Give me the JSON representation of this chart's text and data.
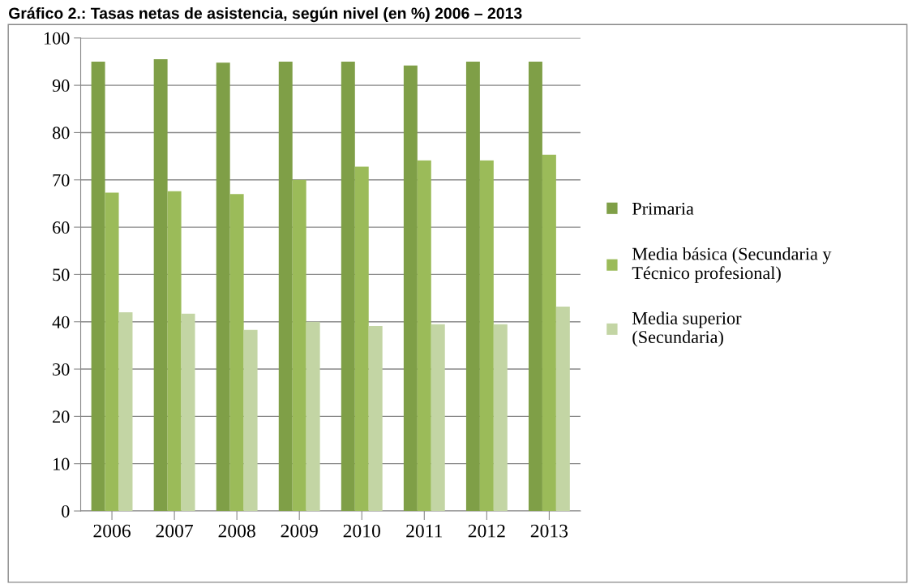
{
  "chart_data": {
    "type": "bar",
    "title": "Gráfico 2.: Tasas netas de asistencia, según nivel (en %) 2006 – 2013",
    "categories": [
      "2006",
      "2007",
      "2008",
      "2009",
      "2010",
      "2011",
      "2012",
      "2013"
    ],
    "series": [
      {
        "name": "Primaria",
        "color": "#7f9f47",
        "values": [
          95.0,
          95.5,
          94.8,
          95.0,
          95.0,
          94.2,
          95.0,
          95.0
        ]
      },
      {
        "name": "Media básica (Secundaria y Técnico profesional)",
        "color": "#9bbb59",
        "values": [
          67.3,
          67.6,
          67.0,
          70.0,
          72.8,
          74.1,
          74.1,
          75.3
        ]
      },
      {
        "name": "Media superior (Secundaria)",
        "color": "#c3d5a4",
        "values": [
          42.0,
          41.7,
          38.3,
          40.0,
          39.1,
          39.5,
          39.5,
          43.2
        ]
      }
    ],
    "ylim": [
      0,
      100
    ],
    "yticks": [
      0,
      10,
      20,
      30,
      40,
      50,
      60,
      70,
      80,
      90,
      100
    ],
    "grid": "y",
    "legend": "right"
  }
}
